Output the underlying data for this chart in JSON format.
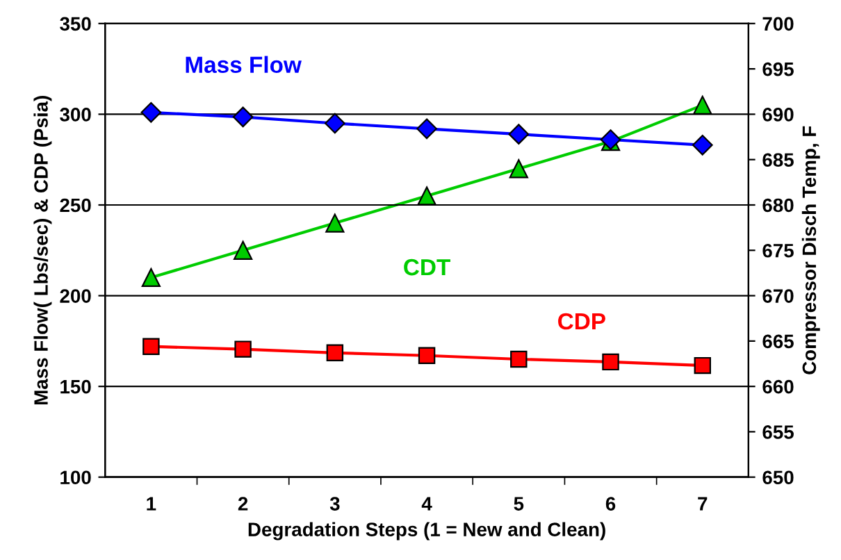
{
  "chart_data": {
    "type": "line",
    "xlabel": "Degradation Steps (1 = New and Clean)",
    "ylabel": "Mass Flow( Lbs/sec) & CDP (Psia)",
    "y2label": "Compressor Disch Temp, F",
    "categories": [
      "1",
      "2",
      "3",
      "4",
      "5",
      "6",
      "7"
    ],
    "series": [
      {
        "name": "Mass Flow",
        "color": "#0000ff",
        "marker": "diamond",
        "values": [
          301,
          298.5,
          295,
          292,
          289,
          286,
          283
        ]
      },
      {
        "name": "CDT",
        "color": "#00cc00",
        "marker": "triangle",
        "axis": "y2",
        "values": [
          672,
          675,
          678,
          681,
          684,
          687,
          691
        ]
      },
      {
        "name": "CDP",
        "color": "#ff0000",
        "marker": "square",
        "values": [
          172,
          170.5,
          168.5,
          167,
          165,
          163.5,
          161.5
        ]
      }
    ],
    "ylim": [
      100,
      350
    ],
    "yticks": [
      100,
      150,
      200,
      250,
      300,
      350
    ],
    "y2lim": [
      650,
      700
    ],
    "y2ticks": [
      650,
      655,
      660,
      665,
      670,
      675,
      680,
      685,
      690,
      695,
      700
    ],
    "grid": "y",
    "legend": false,
    "line_style": "solid"
  }
}
